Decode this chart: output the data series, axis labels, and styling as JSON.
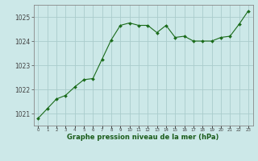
{
  "x": [
    0,
    1,
    2,
    3,
    4,
    5,
    6,
    7,
    8,
    9,
    10,
    11,
    12,
    13,
    14,
    15,
    16,
    17,
    18,
    19,
    20,
    21,
    22,
    23
  ],
  "y": [
    1020.8,
    1021.2,
    1021.6,
    1021.75,
    1022.1,
    1022.4,
    1022.45,
    1023.25,
    1024.05,
    1024.65,
    1024.75,
    1024.65,
    1024.65,
    1024.35,
    1024.65,
    1024.15,
    1024.2,
    1024.0,
    1024.0,
    1024.0,
    1024.15,
    1024.2,
    1024.7,
    1025.25
  ],
  "line_color": "#1a6b1a",
  "marker_color": "#1a6b1a",
  "bg_color": "#cce8e8",
  "grid_color": "#aacccc",
  "xlabel": "Graphe pression niveau de la mer (hPa)",
  "xlabel_color": "#1a5c1a",
  "yticks": [
    1021,
    1022,
    1023,
    1024,
    1025
  ],
  "xticks": [
    0,
    1,
    2,
    3,
    4,
    5,
    6,
    7,
    8,
    9,
    10,
    11,
    12,
    13,
    14,
    15,
    16,
    17,
    18,
    19,
    20,
    21,
    22,
    23
  ],
  "ylim": [
    1020.5,
    1025.5
  ],
  "xlim": [
    -0.5,
    23.5
  ],
  "tick_color": "#444444",
  "spine_color": "#888888"
}
